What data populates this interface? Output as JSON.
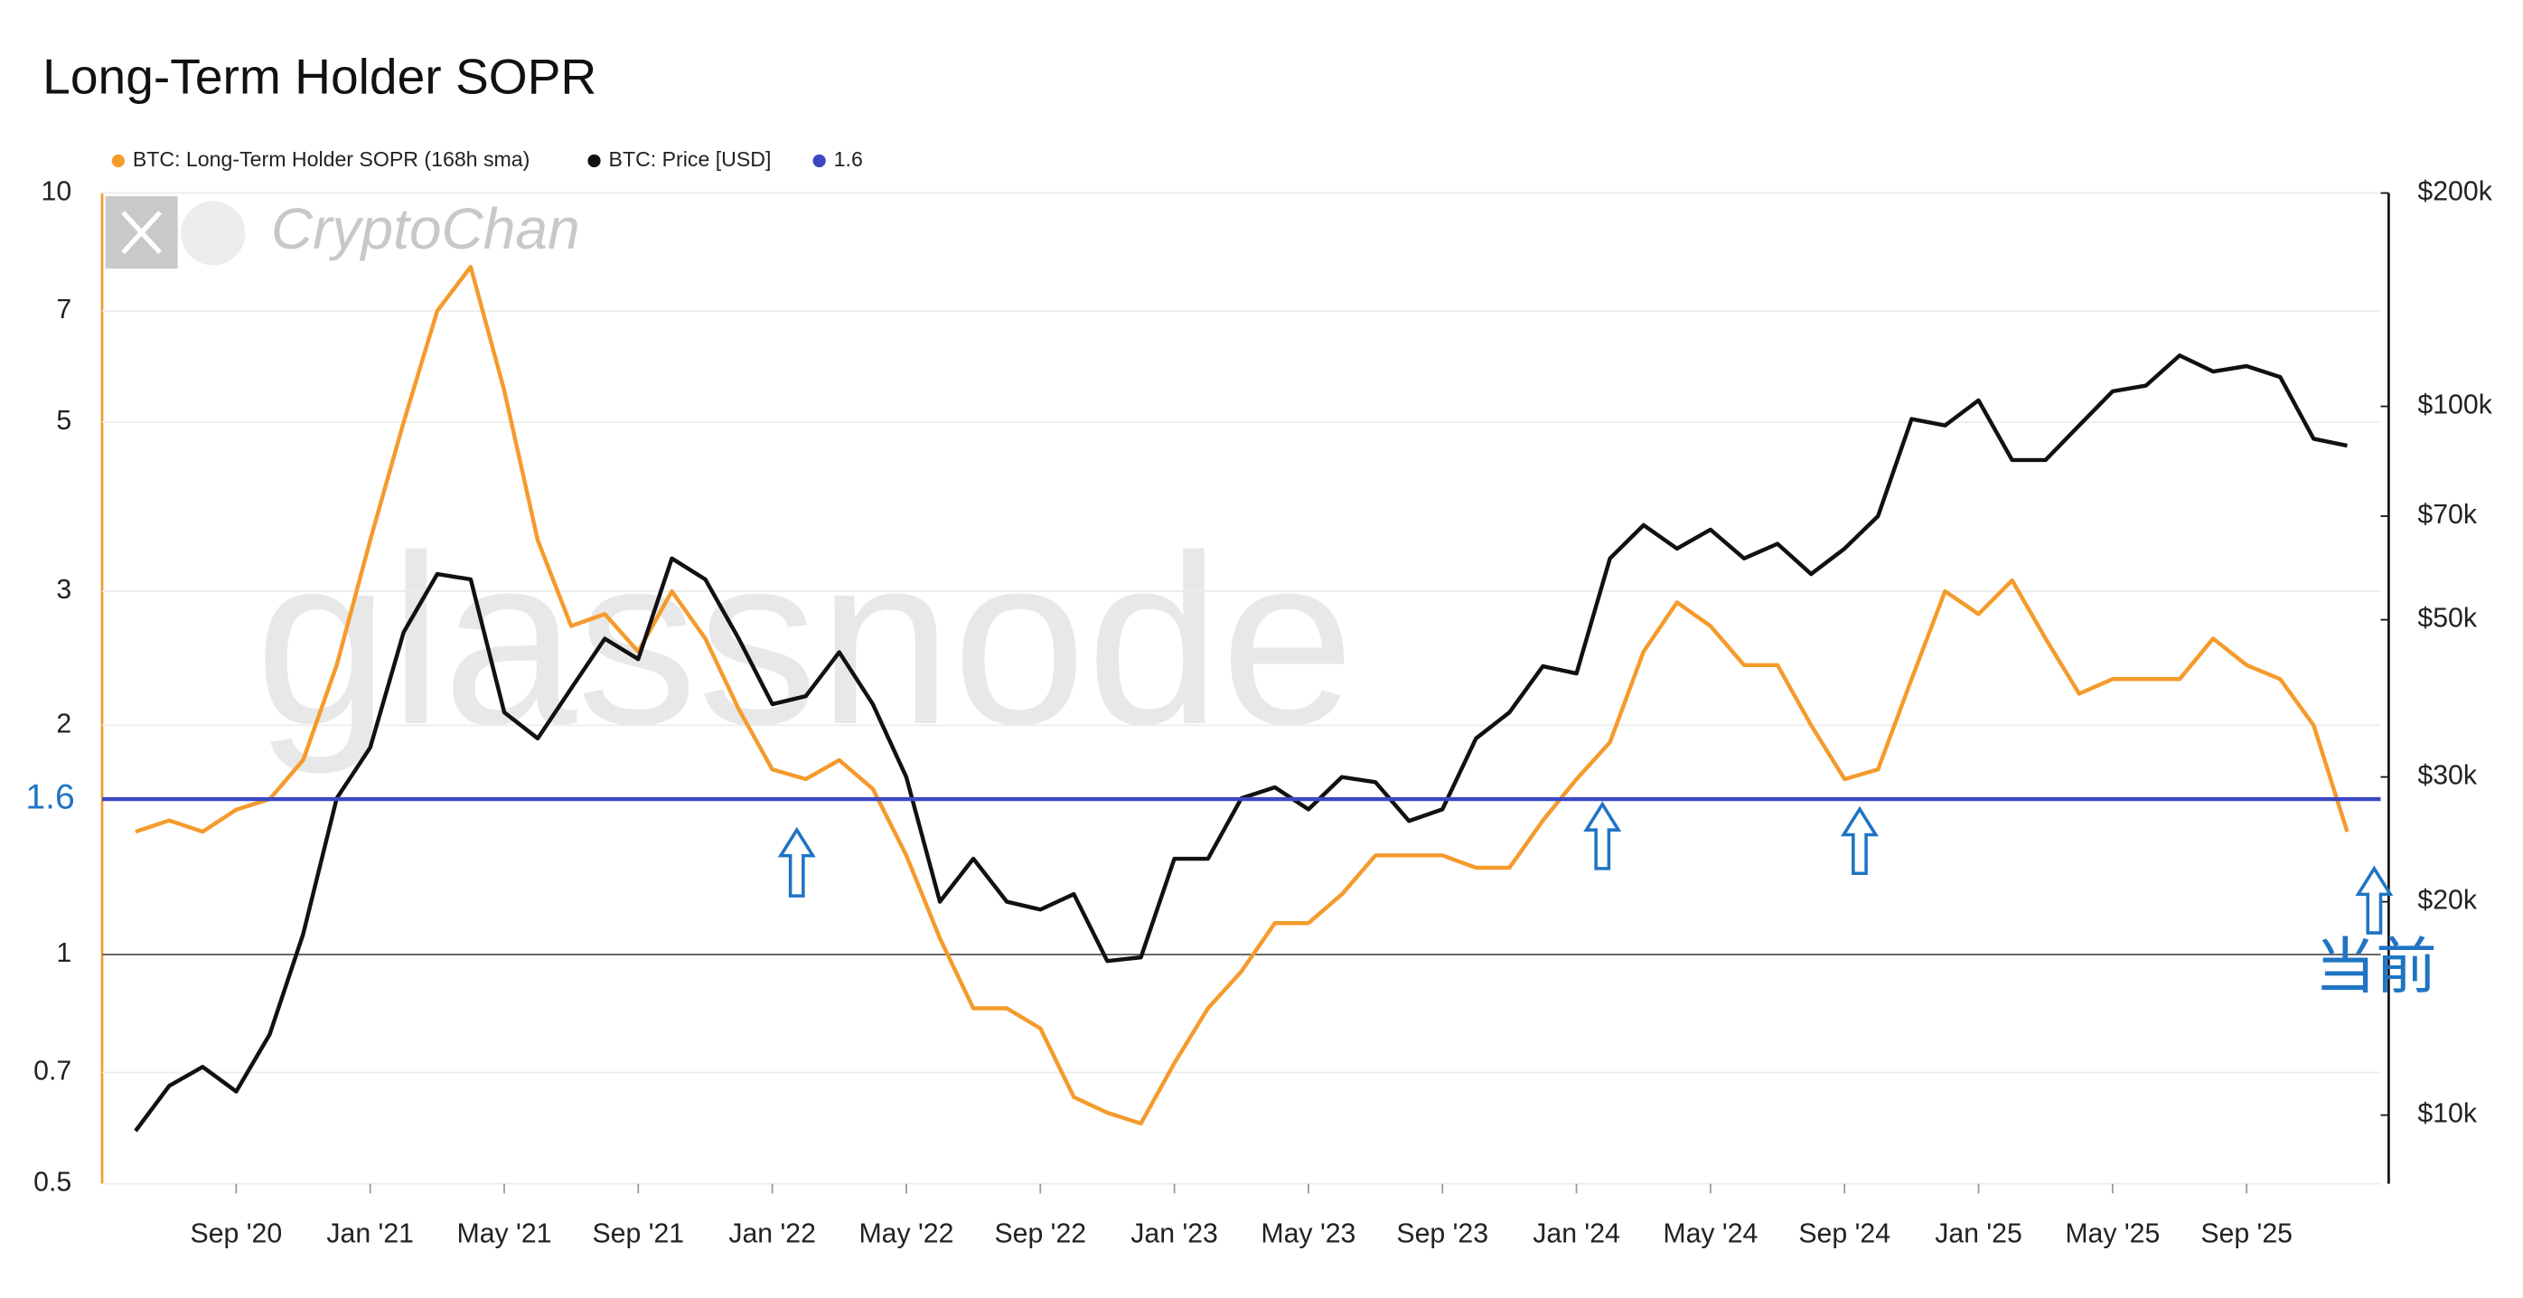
{
  "chart_data": {
    "type": "line",
    "title": "Long-Term Holder SOPR",
    "x": [
      "2020-06",
      "2020-07",
      "2020-08",
      "2020-09",
      "2020-10",
      "2020-11",
      "2020-12",
      "2021-01",
      "2021-02",
      "2021-03",
      "2021-04",
      "2021-05",
      "2021-06",
      "2021-07",
      "2021-08",
      "2021-09",
      "2021-10",
      "2021-11",
      "2021-12",
      "2022-01",
      "2022-02",
      "2022-03",
      "2022-04",
      "2022-05",
      "2022-06",
      "2022-07",
      "2022-08",
      "2022-09",
      "2022-10",
      "2022-11",
      "2022-12",
      "2023-01",
      "2023-02",
      "2023-03",
      "2023-04",
      "2023-05",
      "2023-06",
      "2023-07",
      "2023-08",
      "2023-09",
      "2023-10",
      "2023-11",
      "2023-12",
      "2024-01",
      "2024-02",
      "2024-03",
      "2024-04",
      "2024-05",
      "2024-06",
      "2024-07",
      "2024-08",
      "2024-09",
      "2024-10",
      "2024-11",
      "2024-12",
      "2025-01",
      "2025-02",
      "2025-03",
      "2025-04",
      "2025-05",
      "2025-06",
      "2025-07",
      "2025-08",
      "2025-09",
      "2025-10",
      "2025-11",
      "2025-12"
    ],
    "series": [
      {
        "name": "BTC: Long-Term Holder SOPR (168h sma)",
        "color": "#f49b2c",
        "axis": "y",
        "values": [
          1.45,
          1.5,
          1.45,
          1.55,
          1.6,
          1.8,
          2.4,
          3.5,
          5.0,
          7.0,
          8.0,
          5.5,
          3.5,
          2.7,
          2.8,
          2.5,
          3.0,
          2.6,
          2.1,
          1.75,
          1.7,
          1.8,
          1.65,
          1.35,
          1.05,
          0.85,
          0.85,
          0.8,
          0.65,
          0.62,
          0.6,
          0.72,
          0.85,
          0.95,
          1.1,
          1.1,
          1.2,
          1.35,
          1.35,
          1.35,
          1.3,
          1.3,
          1.5,
          1.7,
          1.9,
          2.5,
          2.9,
          2.7,
          2.4,
          2.4,
          2.0,
          1.7,
          1.75,
          2.3,
          3.0,
          2.8,
          3.1,
          2.6,
          2.2,
          2.3,
          2.3,
          2.3,
          2.6,
          2.4,
          2.3,
          2.0,
          1.45
        ]
      },
      {
        "name": "BTC: Price [USD]",
        "color": "#111111",
        "axis": "y2",
        "values": [
          9500,
          11000,
          11700,
          10800,
          13000,
          18000,
          28000,
          33000,
          48000,
          58000,
          57000,
          37000,
          34000,
          40000,
          47000,
          44000,
          61000,
          57000,
          47000,
          38000,
          39000,
          45000,
          38000,
          30000,
          20000,
          23000,
          20000,
          19500,
          20500,
          16500,
          16700,
          23000,
          23000,
          28000,
          29000,
          27000,
          30000,
          29500,
          26000,
          27000,
          34000,
          37000,
          43000,
          42000,
          61000,
          68000,
          63000,
          67000,
          61000,
          64000,
          58000,
          63000,
          70000,
          96000,
          94000,
          102000,
          84000,
          84000,
          94000,
          105000,
          107000,
          118000,
          112000,
          114000,
          110000,
          90000,
          88000
        ]
      }
    ],
    "hline": {
      "name": "1.6",
      "value": 1.6,
      "color": "#3b47c4"
    },
    "baseline": 1,
    "xlim": [
      "2020-05",
      "2026-01"
    ],
    "xticks": [
      {
        "value": "2020-09",
        "label": "Sep '20"
      },
      {
        "value": "2021-01",
        "label": "Jan '21"
      },
      {
        "value": "2021-05",
        "label": "May '21"
      },
      {
        "value": "2021-09",
        "label": "Sep '21"
      },
      {
        "value": "2022-01",
        "label": "Jan '22"
      },
      {
        "value": "2022-05",
        "label": "May '22"
      },
      {
        "value": "2022-09",
        "label": "Sep '22"
      },
      {
        "value": "2023-01",
        "label": "Jan '23"
      },
      {
        "value": "2023-05",
        "label": "May '23"
      },
      {
        "value": "2023-09",
        "label": "Sep '23"
      },
      {
        "value": "2024-01",
        "label": "Jan '24"
      },
      {
        "value": "2024-05",
        "label": "May '24"
      },
      {
        "value": "2024-09",
        "label": "Sep '24"
      },
      {
        "value": "2025-01",
        "label": "Jan '25"
      },
      {
        "value": "2025-05",
        "label": "May '25"
      },
      {
        "value": "2025-09",
        "label": "Sep '25"
      }
    ],
    "ylim": [
      0.5,
      10
    ],
    "yticks": [
      0.5,
      0.7,
      1,
      2,
      3,
      5,
      7,
      10
    ],
    "y2lim": [
      8000,
      200000
    ],
    "y2ticks": [
      {
        "value": 10000,
        "label": "$10k"
      },
      {
        "value": 20000,
        "label": "$20k"
      },
      {
        "value": 30000,
        "label": "$30k"
      },
      {
        "value": 50000,
        "label": "$50k"
      },
      {
        "value": 70000,
        "label": "$70k"
      },
      {
        "value": 100000,
        "label": "$100k"
      },
      {
        "value": 200000,
        "label": "$200k"
      }
    ],
    "log_scale": true,
    "grid": true,
    "annotations": [
      {
        "text": "当前"
      }
    ],
    "watermarks": [
      "glassnode",
      "CryptoChan"
    ]
  }
}
